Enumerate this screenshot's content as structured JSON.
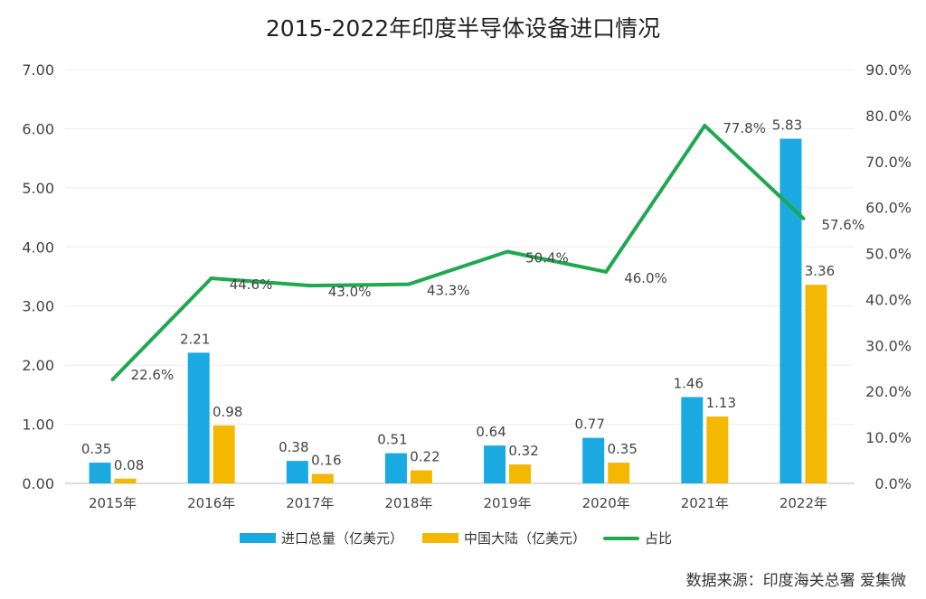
{
  "chart_data": {
    "type": "bar+line",
    "title": "2015-2022年印度半导体设备进口情况",
    "categories": [
      "2015年",
      "2016年",
      "2017年",
      "2018年",
      "2019年",
      "2020年",
      "2021年",
      "2022年"
    ],
    "series": [
      {
        "name": "进口总量（亿美元）",
        "type": "bar",
        "axis": "left",
        "color": "#1aa9e1",
        "values": [
          0.35,
          2.21,
          0.38,
          0.51,
          0.64,
          0.77,
          1.46,
          5.83
        ]
      },
      {
        "name": "中国大陆（亿美元）",
        "type": "bar",
        "axis": "left",
        "color": "#f4b800",
        "values": [
          0.08,
          0.98,
          0.16,
          0.22,
          0.32,
          0.35,
          1.13,
          3.36
        ]
      },
      {
        "name": "占比",
        "type": "line",
        "axis": "right",
        "color": "#1fa84f",
        "values": [
          22.6,
          44.6,
          43.0,
          43.3,
          50.4,
          46.0,
          77.8,
          57.6
        ]
      }
    ],
    "left_axis": {
      "ylim": [
        0,
        7
      ],
      "ticks": [
        "0.00",
        "1.00",
        "2.00",
        "3.00",
        "4.00",
        "5.00",
        "6.00",
        "7.00"
      ]
    },
    "right_axis": {
      "ylim": [
        0,
        90
      ],
      "ticks": [
        "0.0%",
        "10.0%",
        "20.0%",
        "30.0%",
        "40.0%",
        "50.0%",
        "60.0%",
        "70.0%",
        "80.0%",
        "90.0%"
      ]
    },
    "grid": true,
    "legend_position": "bottom",
    "source": "数据来源：印度海关总署 爱集微"
  }
}
